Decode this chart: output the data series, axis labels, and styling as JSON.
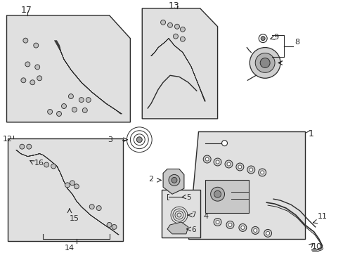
{
  "bg_color": "#ffffff",
  "diagram_bg": "#e0e0e0",
  "line_color": "#2a2a2a",
  "figsize": [
    4.89,
    3.6
  ],
  "dpi": 100
}
